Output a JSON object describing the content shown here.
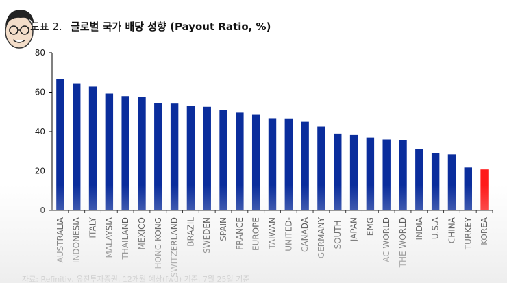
{
  "header": {
    "figure_label": "도표 2.",
    "title": "글로벌 국가 배당 성향 (Payout Ratio, %)"
  },
  "footer": {
    "source": "자료: Refinitiv, 유진투자증권, 12개월 예상(fwd) 기준, 7월 25일 기준"
  },
  "colors": {
    "bar": "#0a2d9c",
    "highlight": "#ff1a1a",
    "axis": "#000000"
  },
  "chart_data": {
    "type": "bar",
    "title": "글로벌 국가 배당 성향 (Payout Ratio, %)",
    "categories": [
      "AUSTRALIA",
      "INDONESIA",
      "ITALY",
      "MALAYSIA",
      "THAILAND",
      "MEXICO",
      "HONG KONG",
      "SWITZERLAND",
      "BRAZIL",
      "SWEDEN",
      "SPAIN",
      "FRANCE",
      "EUROPE",
      "TAIWAN",
      "UNITED-",
      "CANADA",
      "GERMANY",
      "SOUTH-",
      "JAPAN",
      "EMG",
      "AC WORLD",
      "THE WORLD",
      "INDIA",
      "U.S.A",
      "CHINA",
      "TURKEY",
      "KOREA"
    ],
    "values": [
      66.5,
      64.5,
      62.8,
      59.3,
      58,
      57.4,
      54.3,
      54.2,
      53.2,
      52.6,
      51,
      49.6,
      48.5,
      46.8,
      46.7,
      45,
      42.6,
      39,
      38.3,
      37,
      36,
      35.8,
      31.2,
      29,
      28.4,
      21.8,
      20.8
    ],
    "highlight_category": "KOREA",
    "ylim": [
      0,
      80
    ],
    "yticks": [
      0,
      20,
      40,
      60,
      80
    ],
    "xlabel": "",
    "ylabel": "",
    "grid": false,
    "legend": "none"
  }
}
